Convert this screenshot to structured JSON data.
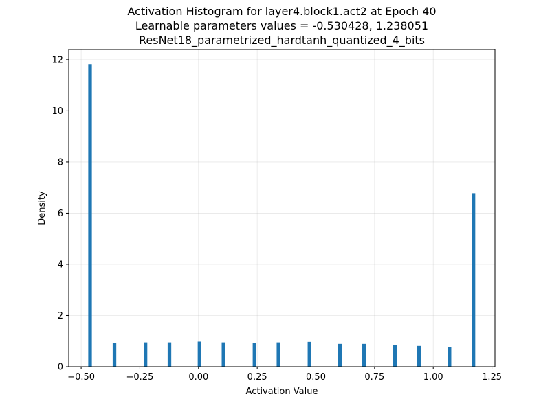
{
  "chart_data": {
    "type": "bar",
    "title_lines": [
      "Activation Histogram for layer4.block1.act2 at Epoch 40",
      "Learnable parameters values = -0.530428, 1.238051",
      "ResNet18_parametrized_hardtanh_quantized_4_bits"
    ],
    "xlabel": "Activation Value",
    "ylabel": "Density",
    "xlim": [
      -0.553,
      1.263
    ],
    "ylim": [
      0,
      12.4
    ],
    "xticks": [
      -0.5,
      -0.25,
      0.0,
      0.25,
      0.5,
      0.75,
      1.0,
      1.25
    ],
    "xtick_labels": [
      "−0.50",
      "−0.25",
      "0.00",
      "0.25",
      "0.50",
      "0.75",
      "1.00",
      "1.25"
    ],
    "yticks": [
      0,
      2,
      4,
      6,
      8,
      10,
      12
    ],
    "ytick_labels": [
      "0",
      "2",
      "4",
      "6",
      "8",
      "10",
      "12"
    ],
    "grid": true,
    "bar_color": "#1f77b4",
    "bar_width": 0.0154,
    "bars": [
      {
        "x": -0.4622,
        "value": 11.83
      },
      {
        "x": -0.3581,
        "value": 0.93
      },
      {
        "x": -0.2259,
        "value": 0.95
      },
      {
        "x": -0.1238,
        "value": 0.95
      },
      {
        "x": 0.0043,
        "value": 0.98
      },
      {
        "x": 0.1064,
        "value": 0.95
      },
      {
        "x": 0.2385,
        "value": 0.93
      },
      {
        "x": 0.3406,
        "value": 0.95
      },
      {
        "x": 0.4727,
        "value": 0.97
      },
      {
        "x": 0.6028,
        "value": 0.89
      },
      {
        "x": 0.7049,
        "value": 0.89
      },
      {
        "x": 0.837,
        "value": 0.84
      },
      {
        "x": 0.9391,
        "value": 0.81
      },
      {
        "x": 1.0692,
        "value": 0.76
      },
      {
        "x": 1.1713,
        "value": 6.78
      }
    ]
  }
}
